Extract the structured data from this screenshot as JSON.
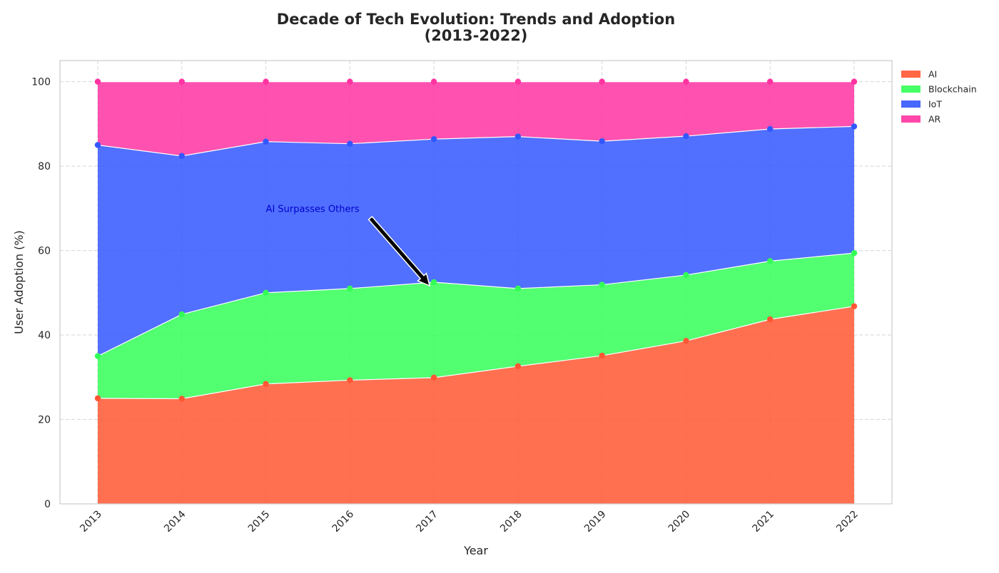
{
  "chart_data": {
    "type": "area",
    "stacked": true,
    "title": "Decade of Tech Evolution: Trends and Adoption\n(2013-2022)",
    "xlabel": "Year",
    "ylabel": "User Adoption (%)",
    "x": [
      "2013",
      "2014",
      "2015",
      "2016",
      "2017",
      "2018",
      "2019",
      "2020",
      "2021",
      "2022"
    ],
    "ylim": [
      0,
      105
    ],
    "yticks": [
      0,
      20,
      40,
      60,
      80,
      100
    ],
    "grid": true,
    "legend_position": "outside-top-right",
    "series": [
      {
        "name": "AI",
        "color": "#FF5733",
        "values": [
          25.0,
          24.9,
          28.4,
          29.3,
          29.9,
          32.6,
          35.1,
          38.6,
          43.7,
          46.8
        ]
      },
      {
        "name": "Blockchain",
        "color": "#33FF57",
        "values": [
          10.0,
          20.0,
          21.6,
          21.7,
          22.6,
          18.4,
          16.8,
          15.6,
          13.8,
          12.6
        ]
      },
      {
        "name": "IoT",
        "color": "#3357FF",
        "values": [
          50.0,
          37.5,
          35.8,
          34.3,
          33.9,
          36.0,
          34.0,
          32.9,
          31.3,
          30.0
        ]
      },
      {
        "name": "AR",
        "color": "#FF33A1",
        "values": [
          15.0,
          17.6,
          14.2,
          14.7,
          13.6,
          13.0,
          14.1,
          12.9,
          11.2,
          10.6
        ]
      }
    ],
    "annotations": [
      {
        "text": "AI Surpasses Others",
        "x": "2017",
        "y": 51,
        "text_x": "2015",
        "text_y": 70,
        "color": "#0000CD"
      }
    ]
  }
}
